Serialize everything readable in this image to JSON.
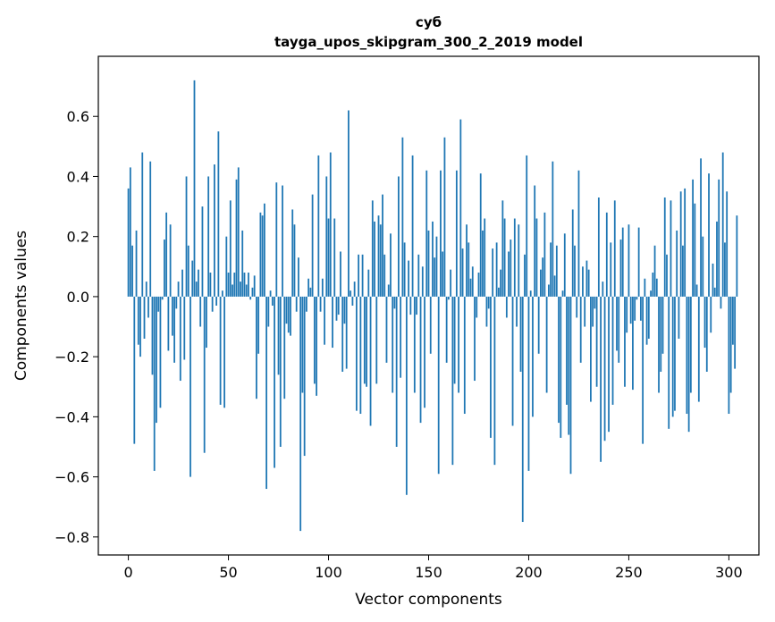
{
  "chart_data": {
    "type": "bar",
    "title": "суб",
    "subtitle": "tayga_upos_skipgram_300_2_2019 model",
    "xlabel": "Vector components",
    "ylabel": "Components values",
    "xlim": [
      -15,
      315
    ],
    "ylim": [
      -0.86,
      0.8
    ],
    "x_ticks": [
      {
        "value": 0,
        "label": "0"
      },
      {
        "value": 50,
        "label": "50"
      },
      {
        "value": 100,
        "label": "100"
      },
      {
        "value": 150,
        "label": "150"
      },
      {
        "value": 200,
        "label": "200"
      },
      {
        "value": 250,
        "label": "250"
      },
      {
        "value": 300,
        "label": "300"
      }
    ],
    "y_ticks": [
      {
        "value": 0.6,
        "label": "0.6"
      },
      {
        "value": 0.4,
        "label": "0.4"
      },
      {
        "value": 0.2,
        "label": "0.2"
      },
      {
        "value": 0.0,
        "label": "0.0"
      },
      {
        "value": -0.2,
        "label": "−0.2"
      },
      {
        "value": -0.4,
        "label": "−0.4"
      },
      {
        "value": -0.6,
        "label": "−0.6"
      },
      {
        "value": -0.8,
        "label": "−0.8"
      }
    ],
    "grid": false,
    "bar_color": "#1f77b4",
    "values": [
      0.36,
      0.43,
      0.17,
      -0.49,
      0.22,
      -0.16,
      -0.2,
      0.48,
      -0.14,
      0.05,
      -0.07,
      0.45,
      -0.26,
      -0.58,
      -0.42,
      -0.05,
      -0.37,
      -0.01,
      0.19,
      0.28,
      -0.18,
      0.24,
      -0.13,
      -0.22,
      -0.04,
      0.05,
      -0.28,
      0.09,
      -0.21,
      0.4,
      0.17,
      -0.6,
      0.12,
      0.72,
      0.05,
      0.09,
      -0.1,
      0.3,
      -0.52,
      -0.17,
      0.4,
      0.08,
      -0.05,
      0.44,
      -0.03,
      0.55,
      -0.36,
      0.02,
      -0.37,
      0.2,
      0.08,
      0.32,
      0.04,
      0.08,
      0.39,
      0.43,
      0.05,
      0.22,
      0.08,
      0.04,
      0.08,
      -0.01,
      0.03,
      0.07,
      -0.34,
      -0.19,
      0.28,
      0.27,
      0.31,
      -0.64,
      -0.1,
      0.02,
      -0.03,
      -0.57,
      0.38,
      -0.26,
      -0.5,
      0.37,
      -0.34,
      -0.09,
      -0.12,
      -0.13,
      0.29,
      0.24,
      -0.05,
      0.13,
      -0.78,
      -0.32,
      -0.53,
      -0.05,
      0.06,
      0.03,
      0.34,
      -0.29,
      -0.33,
      0.47,
      -0.05,
      0.06,
      -0.16,
      0.4,
      0.26,
      0.48,
      -0.17,
      0.26,
      -0.08,
      -0.06,
      0.15,
      -0.25,
      -0.09,
      -0.24,
      0.62,
      0.02,
      -0.03,
      0.05,
      -0.38,
      0.14,
      -0.39,
      0.14,
      -0.29,
      -0.3,
      0.09,
      -0.43,
      0.32,
      0.25,
      -0.29,
      0.27,
      0.24,
      0.34,
      0.14,
      -0.22,
      0.04,
      0.21,
      -0.32,
      -0.04,
      -0.5,
      0.4,
      -0.27,
      0.53,
      0.18,
      -0.66,
      0.12,
      -0.06,
      0.47,
      -0.32,
      -0.06,
      0.14,
      -0.42,
      0.1,
      -0.37,
      0.42,
      0.22,
      -0.19,
      0.25,
      0.13,
      0.2,
      -0.59,
      0.42,
      0.15,
      0.53,
      -0.22,
      -0.01,
      0.09,
      -0.56,
      -0.29,
      0.42,
      -0.32,
      0.59,
      0.16,
      -0.39,
      0.24,
      0.18,
      0.06,
      0.1,
      -0.28,
      -0.07,
      0.08,
      0.41,
      0.22,
      0.26,
      -0.1,
      -0.04,
      -0.47,
      0.16,
      -0.56,
      0.18,
      0.03,
      0.09,
      0.32,
      0.26,
      -0.07,
      0.15,
      0.19,
      -0.43,
      0.26,
      -0.1,
      0.24,
      -0.25,
      -0.75,
      0.14,
      0.47,
      -0.58,
      0.02,
      -0.4,
      0.37,
      0.26,
      -0.19,
      0.09,
      0.13,
      0.28,
      -0.32,
      0.04,
      0.18,
      0.45,
      0.07,
      0.17,
      -0.42,
      -0.47,
      0.02,
      0.21,
      -0.36,
      -0.46,
      -0.59,
      0.29,
      0.17,
      -0.07,
      0.42,
      -0.22,
      0.1,
      -0.1,
      0.12,
      0.09,
      -0.35,
      -0.1,
      -0.04,
      -0.3,
      0.33,
      -0.55,
      0.05,
      -0.48,
      0.28,
      -0.45,
      0.18,
      -0.36,
      0.32,
      -0.18,
      -0.22,
      0.19,
      0.23,
      -0.3,
      -0.12,
      0.24,
      -0.09,
      -0.31,
      -0.08,
      -0.01,
      0.23,
      -0.08,
      -0.49,
      0.06,
      -0.16,
      -0.14,
      0.02,
      0.08,
      0.17,
      0.06,
      -0.32,
      -0.25,
      -0.19,
      0.33,
      0.14,
      -0.44,
      0.32,
      -0.4,
      -0.38,
      0.22,
      -0.14,
      0.35,
      0.17,
      0.36,
      -0.39,
      -0.45,
      -0.32,
      0.39,
      0.31,
      0.04,
      -0.35,
      0.46,
      0.2,
      -0.17,
      -0.25,
      0.41,
      -0.12,
      0.11,
      0.03,
      0.25,
      0.39,
      -0.04,
      0.48,
      0.18,
      0.35,
      -0.39,
      -0.32,
      -0.16,
      -0.24,
      0.27
    ]
  }
}
